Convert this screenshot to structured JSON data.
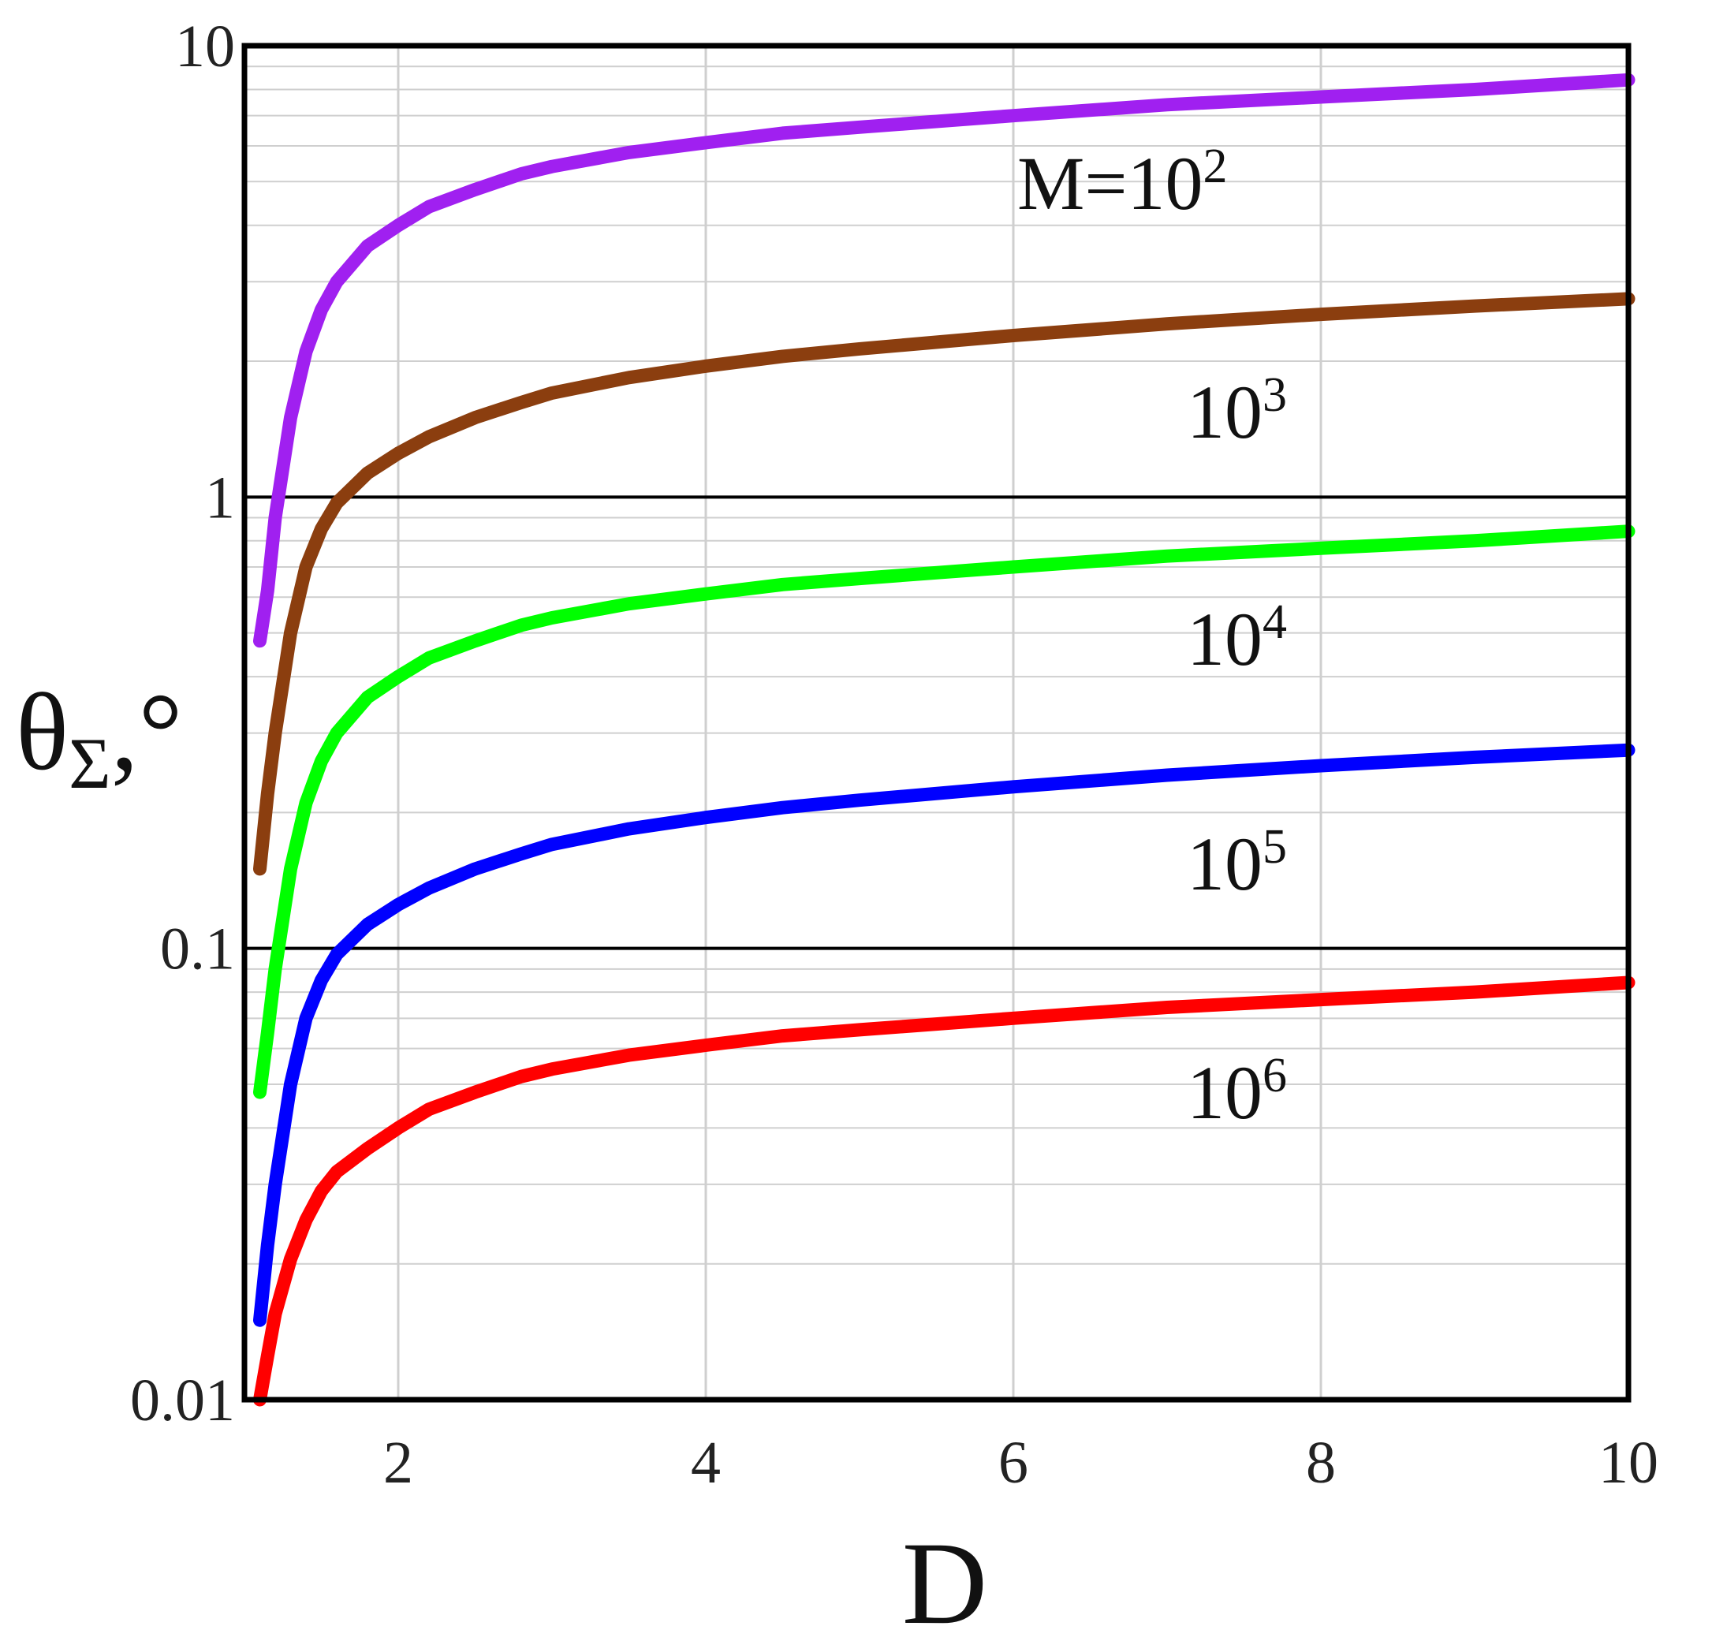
{
  "chart_data": {
    "type": "line",
    "title": "",
    "xlabel": "D",
    "ylabel": {
      "base": "θ",
      "sub": "Σ",
      "suffix": ",°"
    },
    "xlim": [
      1,
      10
    ],
    "ylim": [
      0.01,
      10
    ],
    "yscale": "log",
    "grid": true,
    "x_ticks": [
      2,
      4,
      6,
      8,
      10
    ],
    "x_tick_labels": [
      "2",
      "4",
      "6",
      "8",
      "10"
    ],
    "y_ticks": [
      0.01,
      0.1,
      1,
      10
    ],
    "y_tick_labels": [
      "0.01",
      "0.1",
      "1",
      "10"
    ],
    "x": [
      1.1,
      1.15,
      1.2,
      1.3,
      1.4,
      1.5,
      1.6,
      1.8,
      2.0,
      2.2,
      2.5,
      2.8,
      3.0,
      3.5,
      4.0,
      4.5,
      5.0,
      6.0,
      7.0,
      8.0,
      9.0,
      10.0
    ],
    "series": [
      {
        "name": "M=10^2",
        "label_text": "M=10",
        "label_exp": "2",
        "color": "#a020f0",
        "values": [
          0.48,
          0.62,
          0.9,
          1.5,
          2.1,
          2.6,
          3.0,
          3.6,
          4.0,
          4.4,
          4.8,
          5.2,
          5.4,
          5.8,
          6.1,
          6.4,
          6.6,
          7.0,
          7.4,
          7.7,
          8.0,
          8.4
        ]
      },
      {
        "name": "M=10^3",
        "label_text": "10",
        "label_exp": "3",
        "color": "#8b3e0f",
        "values": [
          0.15,
          0.22,
          0.3,
          0.5,
          0.7,
          0.85,
          0.97,
          1.13,
          1.25,
          1.36,
          1.5,
          1.62,
          1.7,
          1.84,
          1.95,
          2.05,
          2.13,
          2.28,
          2.42,
          2.54,
          2.65,
          2.75
        ]
      },
      {
        "name": "M=10^4",
        "label_text": "10",
        "label_exp": "4",
        "color": "#00ff00",
        "values": [
          0.048,
          0.065,
          0.09,
          0.15,
          0.21,
          0.26,
          0.3,
          0.36,
          0.4,
          0.44,
          0.48,
          0.52,
          0.54,
          0.58,
          0.61,
          0.64,
          0.66,
          0.7,
          0.74,
          0.77,
          0.8,
          0.84
        ]
      },
      {
        "name": "M=10^5",
        "label_text": "10",
        "label_exp": "5",
        "color": "#0000ff",
        "values": [
          0.015,
          0.022,
          0.03,
          0.05,
          0.07,
          0.085,
          0.097,
          0.113,
          0.125,
          0.136,
          0.15,
          0.162,
          0.17,
          0.184,
          0.195,
          0.205,
          0.213,
          0.228,
          0.242,
          0.254,
          0.265,
          0.275
        ]
      },
      {
        "name": "M=10^6",
        "label_text": "10",
        "label_exp": "6",
        "color": "#ff0000",
        "values": [
          0.01,
          0.0125,
          0.0155,
          0.0205,
          0.025,
          0.029,
          0.032,
          0.036,
          0.04,
          0.044,
          0.048,
          0.052,
          0.054,
          0.058,
          0.061,
          0.064,
          0.066,
          0.07,
          0.074,
          0.077,
          0.08,
          0.084
        ]
      }
    ]
  }
}
